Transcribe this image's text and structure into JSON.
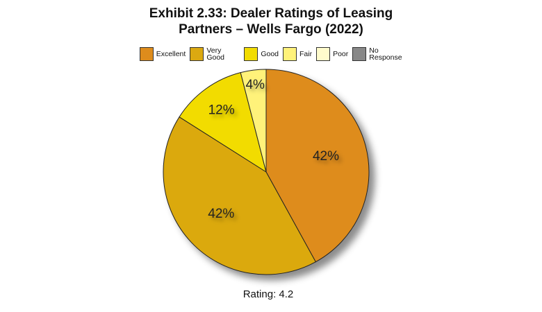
{
  "chart_data": {
    "type": "pie",
    "title": "Exhibit 2.33: Dealer Ratings of Leasing Partners – Wells Fargo (2022)",
    "subtitle": "Rating: 4.2",
    "categories": [
      "Excellent",
      "Very Good",
      "Good",
      "Fair",
      "Poor",
      "No Response"
    ],
    "values": [
      42,
      42,
      12,
      4,
      0,
      0
    ],
    "value_labels": [
      "42%",
      "42%",
      "12%",
      "4%",
      null,
      null
    ],
    "colors": [
      "#de8c1c",
      "#dba911",
      "#f2dc00",
      "#fff27a",
      "#fffccc",
      "#888888"
    ],
    "legend": "top"
  }
}
